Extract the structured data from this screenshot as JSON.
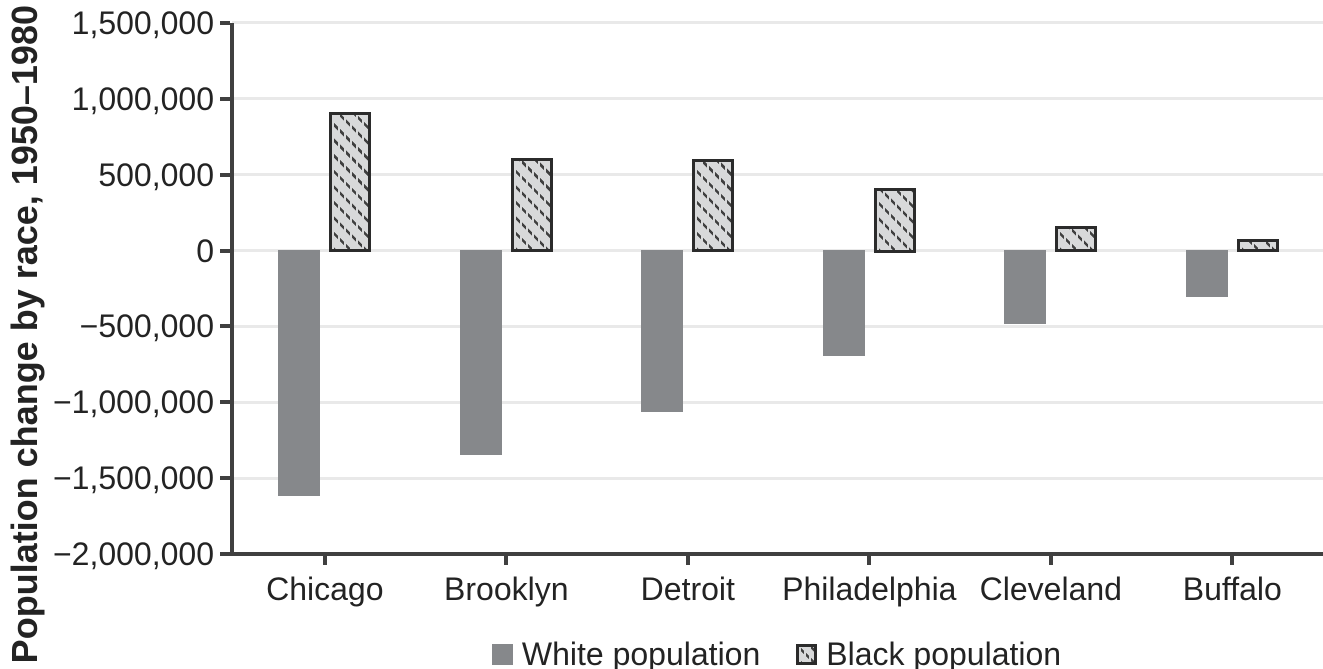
{
  "figure": {
    "background": "#ffffff"
  },
  "chart_data": {
    "type": "bar",
    "title": "",
    "xlabel": "",
    "ylabel": "Population change by race, 1950–1980",
    "categories": [
      "Chicago",
      "Brooklyn",
      "Detroit",
      "Philadelphia",
      "Cleveland",
      "Buffalo"
    ],
    "series": [
      {
        "name": "White population",
        "pattern": "solid",
        "color": "#86888b",
        "values": [
          -1620000,
          -1350000,
          -1065000,
          -700000,
          -490000,
          -310000
        ]
      },
      {
        "name": "Black population",
        "pattern": "diagonal-dotted-hatch",
        "color": "#d8d9da",
        "border_color": "#2b2b2b",
        "values": [
          910000,
          610000,
          605000,
          415000,
          160000,
          75000
        ]
      }
    ],
    "ylim": [
      -2000000,
      1500000
    ],
    "ytick_step": 500000,
    "ytick_labels": [
      "1,500,000",
      "1,000,000",
      "500,000",
      "0",
      "−500,000",
      "−1,000,000",
      "−1,500,000",
      "−2,000,000"
    ],
    "grid": true,
    "legend_position": "bottom-center"
  },
  "colors": {
    "axis": "#404040",
    "gridline": "#e9e9e9",
    "text": "#232323",
    "bar_white": "#86888b",
    "bar_black_fill": "#d8d9da",
    "bar_black_border": "#2b2b2b",
    "hatch_dot": "#3f3f3f"
  }
}
